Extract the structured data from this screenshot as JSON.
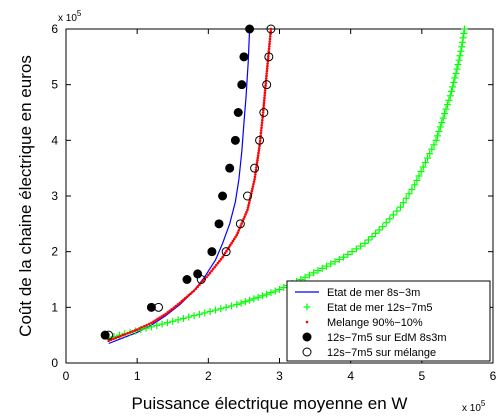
{
  "chart_data": {
    "type": "scatter",
    "title": "",
    "xlabel": "Puissance électrique moyenne en W",
    "ylabel": "Coût de la chaine électrique en euros",
    "x_exponent_label": "x 10",
    "x_exponent_power": "5",
    "y_exponent_label": "x 10",
    "y_exponent_power": "5",
    "xlim": [
      0,
      6
    ],
    "ylim": [
      0,
      6
    ],
    "xticks": [
      "0",
      "1",
      "2",
      "3",
      "4",
      "5",
      "6"
    ],
    "yticks": [
      "0",
      "1",
      "2",
      "3",
      "4",
      "5",
      "6"
    ],
    "units_note": "x and y values in units of 1e5",
    "grid": false,
    "legend_position": "bottom-right",
    "series": [
      {
        "name": "Etat de mer 8s−3m",
        "style": "line",
        "color": "#0000ff",
        "points": [
          [
            0.6,
            0.35
          ],
          [
            0.8,
            0.45
          ],
          [
            1.0,
            0.55
          ],
          [
            1.2,
            0.68
          ],
          [
            1.4,
            0.85
          ],
          [
            1.6,
            1.05
          ],
          [
            1.8,
            1.3
          ],
          [
            1.95,
            1.55
          ],
          [
            2.1,
            1.85
          ],
          [
            2.2,
            2.15
          ],
          [
            2.3,
            2.5
          ],
          [
            2.38,
            2.9
          ],
          [
            2.43,
            3.3
          ],
          [
            2.47,
            3.8
          ],
          [
            2.5,
            4.3
          ],
          [
            2.53,
            4.8
          ],
          [
            2.56,
            5.4
          ],
          [
            2.58,
            6.0
          ]
        ]
      },
      {
        "name": "Etat de mer 12s−7m5",
        "style": "plus",
        "color": "#00ff00",
        "points": [
          [
            0.6,
            0.45
          ],
          [
            0.9,
            0.55
          ],
          [
            1.2,
            0.65
          ],
          [
            1.5,
            0.75
          ],
          [
            1.8,
            0.85
          ],
          [
            2.1,
            0.95
          ],
          [
            2.4,
            1.05
          ],
          [
            2.7,
            1.18
          ],
          [
            3.0,
            1.32
          ],
          [
            3.3,
            1.5
          ],
          [
            3.6,
            1.7
          ],
          [
            3.9,
            1.9
          ],
          [
            4.2,
            2.15
          ],
          [
            4.45,
            2.45
          ],
          [
            4.7,
            2.8
          ],
          [
            4.9,
            3.2
          ],
          [
            5.05,
            3.6
          ],
          [
            5.2,
            4.0
          ],
          [
            5.3,
            4.4
          ],
          [
            5.4,
            4.8
          ],
          [
            5.48,
            5.2
          ],
          [
            5.55,
            5.6
          ],
          [
            5.6,
            6.0
          ]
        ]
      },
      {
        "name": "Melange 90%−10%",
        "style": "dot",
        "color": "#ff0000",
        "points": [
          [
            0.6,
            0.4
          ],
          [
            0.8,
            0.5
          ],
          [
            1.0,
            0.6
          ],
          [
            1.2,
            0.72
          ],
          [
            1.4,
            0.88
          ],
          [
            1.6,
            1.08
          ],
          [
            1.8,
            1.3
          ],
          [
            2.0,
            1.58
          ],
          [
            2.2,
            1.9
          ],
          [
            2.4,
            2.3
          ],
          [
            2.55,
            2.75
          ],
          [
            2.65,
            3.3
          ],
          [
            2.72,
            3.9
          ],
          [
            2.77,
            4.5
          ],
          [
            2.82,
            5.2
          ],
          [
            2.85,
            5.6
          ],
          [
            2.88,
            6.0
          ]
        ]
      },
      {
        "name": "12s−7m5 sur EdM 8s3m",
        "style": "filled-circle",
        "color": "#000000",
        "points": [
          [
            0.55,
            0.5
          ],
          [
            1.2,
            1.0
          ],
          [
            1.7,
            1.5
          ],
          [
            1.85,
            1.6
          ],
          [
            2.05,
            2.0
          ],
          [
            2.15,
            2.5
          ],
          [
            2.2,
            3.0
          ],
          [
            2.3,
            3.5
          ],
          [
            2.38,
            4.0
          ],
          [
            2.42,
            4.5
          ],
          [
            2.47,
            5.0
          ],
          [
            2.5,
            5.5
          ],
          [
            2.58,
            6.0
          ]
        ]
      },
      {
        "name": "12s−7m5 sur mélange",
        "style": "open-circle",
        "color": "#000000",
        "points": [
          [
            0.6,
            0.5
          ],
          [
            1.3,
            1.0
          ],
          [
            1.9,
            1.5
          ],
          [
            2.25,
            2.0
          ],
          [
            2.45,
            2.5
          ],
          [
            2.55,
            3.0
          ],
          [
            2.65,
            3.5
          ],
          [
            2.72,
            4.0
          ],
          [
            2.78,
            4.5
          ],
          [
            2.82,
            5.0
          ],
          [
            2.85,
            5.5
          ],
          [
            2.88,
            6.0
          ]
        ]
      }
    ]
  }
}
